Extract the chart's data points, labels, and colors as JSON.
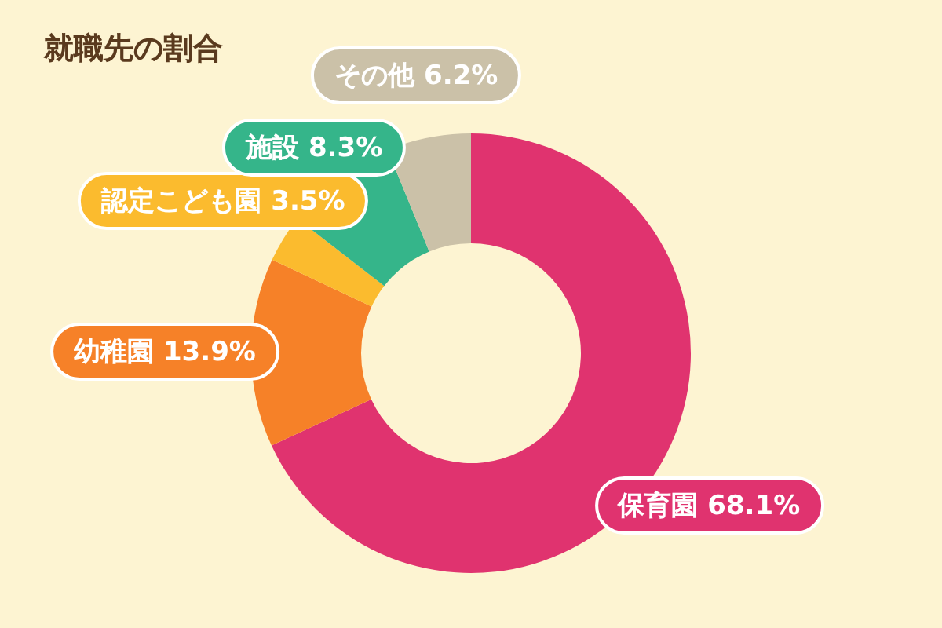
{
  "chart_data": {
    "type": "donut",
    "title": "就職先の割合",
    "categories": [
      "保育園",
      "幼稚園",
      "認定こども園",
      "施設",
      "その他"
    ],
    "values": [
      68.1,
      13.9,
      3.5,
      8.3,
      6.2
    ],
    "colors": [
      "#e0336f",
      "#f68128",
      "#fbbb2e",
      "#35b58a",
      "#cbc1a8"
    ],
    "value_labels": [
      "68.1%",
      "13.9%",
      "3.5%",
      "8.3%",
      "6.2%"
    ]
  }
}
